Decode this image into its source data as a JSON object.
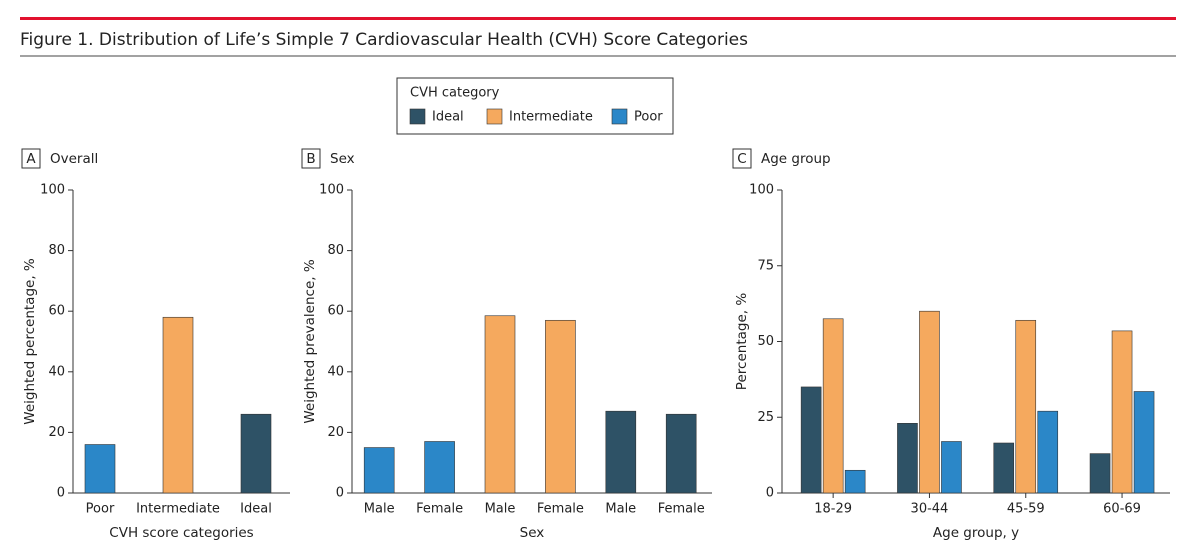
{
  "title": "Figure 1. Distribution of Life’s Simple 7 Cardiovascular Health (CVH) Score Categories",
  "legend_title": "CVH category",
  "chart_data": [
    {
      "type": "bar",
      "panel": "A",
      "title": "Overall",
      "xlabel": "CVH score categories",
      "ylabel": "Weighted percentage, %",
      "categories": [
        "Poor",
        "Intermediate",
        "Ideal"
      ],
      "values": [
        16,
        58,
        26
      ],
      "colors": [
        "#2b87c8",
        "#f5a95e",
        "#2e5266"
      ],
      "ylim": [
        0,
        100
      ],
      "yticks": [
        0,
        20,
        40,
        60,
        80,
        100
      ]
    },
    {
      "type": "bar",
      "panel": "B",
      "title": "Sex",
      "xlabel": "Sex",
      "ylabel": "Weighted prevalence, %",
      "categories": [
        "Male",
        "Female",
        "Male",
        "Female",
        "Male",
        "Female"
      ],
      "values": [
        15,
        17,
        58.5,
        57,
        27,
        26
      ],
      "colors": [
        "#2b87c8",
        "#2b87c8",
        "#f5a95e",
        "#f5a95e",
        "#2e5266",
        "#2e5266"
      ],
      "ylim": [
        0,
        100
      ],
      "yticks": [
        0,
        20,
        40,
        60,
        80,
        100
      ]
    },
    {
      "type": "grouped_bar",
      "panel": "C",
      "title": "Age group",
      "xlabel": "Age group, y",
      "ylabel": "Percentage, %",
      "categories": [
        "18-29",
        "30-44",
        "45-59",
        "60-69"
      ],
      "series": [
        {
          "name": "Ideal",
          "color": "#2e5266",
          "values": [
            35,
            23,
            16.5,
            13
          ]
        },
        {
          "name": "Intermediate",
          "color": "#f5a95e",
          "values": [
            57.5,
            60,
            57,
            53.5
          ]
        },
        {
          "name": "Poor",
          "color": "#2b87c8",
          "values": [
            7.5,
            17,
            27,
            33.5
          ]
        }
      ],
      "ylim": [
        0,
        100
      ],
      "yticks": [
        0,
        25,
        50,
        75,
        100
      ]
    }
  ]
}
